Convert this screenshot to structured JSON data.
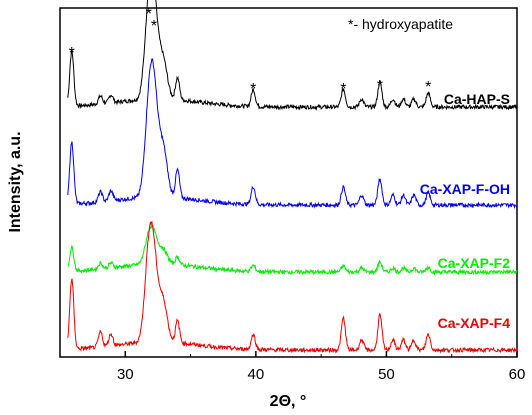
{
  "chart_data": {
    "type": "line",
    "xlabel": "2Θ, °",
    "ylabel": "Intensity, a.u.",
    "xlim": [
      25,
      60
    ],
    "x_ticks": [
      30,
      40,
      50,
      60
    ],
    "x_tick_labels": [
      "30",
      "40",
      "50",
      "60"
    ],
    "y_ticks_labeled": false,
    "annotation": "*- hydroxyapatite",
    "peak_marker": "*",
    "hydroxyapatite_peaks": [
      25.9,
      31.8,
      32.2,
      39.8,
      46.7,
      49.5,
      53.2
    ],
    "legend_placement": "labels beside each curve at right",
    "series": [
      {
        "name": "Ca-HAP-S",
        "color": "#000000",
        "baseline": 18,
        "peaks": [
          [
            25.9,
            55
          ],
          [
            28.1,
            8
          ],
          [
            28.9,
            8
          ],
          [
            31.8,
            80
          ],
          [
            32.2,
            78
          ],
          [
            32.9,
            38
          ],
          [
            34.0,
            22
          ],
          [
            39.8,
            17
          ],
          [
            46.7,
            18
          ],
          [
            48.1,
            8
          ],
          [
            49.5,
            25
          ],
          [
            50.5,
            8
          ],
          [
            51.3,
            8
          ],
          [
            52.1,
            8
          ],
          [
            53.2,
            14
          ]
        ]
      },
      {
        "name": "Ca-XAP-F-OH",
        "color": "#0000ee",
        "baseline": 18,
        "peaks": [
          [
            25.9,
            62
          ],
          [
            28.1,
            10
          ],
          [
            28.9,
            10
          ],
          [
            31.8,
            75
          ],
          [
            32.2,
            90
          ],
          [
            32.9,
            48
          ],
          [
            34.0,
            28
          ],
          [
            39.8,
            18
          ],
          [
            46.7,
            18
          ],
          [
            48.1,
            10
          ],
          [
            49.5,
            26
          ],
          [
            50.5,
            10
          ],
          [
            51.3,
            10
          ],
          [
            52.1,
            10
          ],
          [
            53.2,
            12
          ]
        ]
      },
      {
        "name": "Ca-XAP-F2",
        "color": "#00ee00",
        "baseline": 6,
        "peaks": [
          [
            25.9,
            24
          ],
          [
            28.1,
            6
          ],
          [
            28.9,
            5
          ],
          [
            31.8,
            24
          ],
          [
            32.2,
            22
          ],
          [
            32.9,
            14
          ],
          [
            34.0,
            8
          ],
          [
            39.8,
            6
          ],
          [
            46.7,
            6
          ],
          [
            48.1,
            4
          ],
          [
            49.5,
            10
          ],
          [
            50.5,
            4
          ],
          [
            51.3,
            4
          ],
          [
            52.1,
            4
          ],
          [
            53.2,
            5
          ]
        ]
      },
      {
        "name": "Ca-XAP-F4",
        "color": "#ee0000",
        "baseline": 5,
        "peaks": [
          [
            25.9,
            70
          ],
          [
            28.1,
            15
          ],
          [
            28.9,
            12
          ],
          [
            31.8,
            80
          ],
          [
            32.2,
            65
          ],
          [
            32.9,
            40
          ],
          [
            34.0,
            22
          ],
          [
            39.8,
            15
          ],
          [
            46.7,
            32
          ],
          [
            48.1,
            10
          ],
          [
            49.5,
            35
          ],
          [
            50.5,
            10
          ],
          [
            51.3,
            10
          ],
          [
            52.1,
            10
          ],
          [
            53.2,
            16
          ]
        ]
      }
    ]
  }
}
